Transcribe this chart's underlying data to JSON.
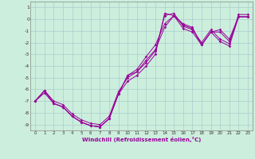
{
  "xlabel": "Windchill (Refroidissement éolien,°C)",
  "x_hours": [
    0,
    1,
    2,
    3,
    4,
    5,
    6,
    7,
    8,
    9,
    10,
    11,
    12,
    13,
    14,
    15,
    16,
    17,
    18,
    19,
    20,
    21,
    22,
    23
  ],
  "lines": [
    [
      -7.0,
      -6.3,
      -7.2,
      -7.5,
      -8.3,
      -8.8,
      -9.1,
      -9.2,
      -8.5,
      -6.4,
      -5.3,
      -4.8,
      -4.0,
      -3.0,
      0.5,
      0.3,
      -0.8,
      -1.1,
      -2.2,
      -1.1,
      -1.9,
      -2.3,
      0.2,
      0.2
    ],
    [
      -7.0,
      -6.1,
      -7.0,
      -7.3,
      -8.1,
      -8.6,
      -8.9,
      -9.0,
      -8.3,
      -6.2,
      -5.0,
      -4.5,
      -3.7,
      -2.7,
      0.3,
      0.5,
      -0.6,
      -0.9,
      -2.0,
      -0.9,
      -1.7,
      -2.1,
      0.4,
      0.4
    ],
    [
      -7.0,
      -6.1,
      -7.2,
      -7.5,
      -8.3,
      -8.8,
      -9.1,
      -9.2,
      -8.5,
      -6.4,
      -4.8,
      -4.5,
      -3.5,
      -2.6,
      -0.7,
      0.3,
      -0.5,
      -0.8,
      -2.2,
      -1.1,
      -1.1,
      -1.9,
      0.2,
      0.2
    ],
    [
      -7.0,
      -6.1,
      -7.2,
      -7.5,
      -8.3,
      -8.8,
      -9.1,
      -9.2,
      -8.5,
      -6.4,
      -4.8,
      -4.3,
      -3.2,
      -2.2,
      -0.4,
      0.3,
      -0.4,
      -0.7,
      -2.2,
      -1.1,
      -0.9,
      -1.7,
      0.2,
      0.2
    ]
  ],
  "line_color": "#990099",
  "bg_color": "#cceedd",
  "grid_color": "#aacccc",
  "ylim": [
    -9.5,
    1.5
  ],
  "xlim": [
    -0.5,
    23.5
  ],
  "yticks": [
    1,
    0,
    -1,
    -2,
    -3,
    -4,
    -5,
    -6,
    -7,
    -8,
    -9
  ],
  "xticks": [
    0,
    1,
    2,
    3,
    4,
    5,
    6,
    7,
    8,
    9,
    10,
    11,
    12,
    13,
    14,
    15,
    16,
    17,
    18,
    19,
    20,
    21,
    22,
    23
  ]
}
